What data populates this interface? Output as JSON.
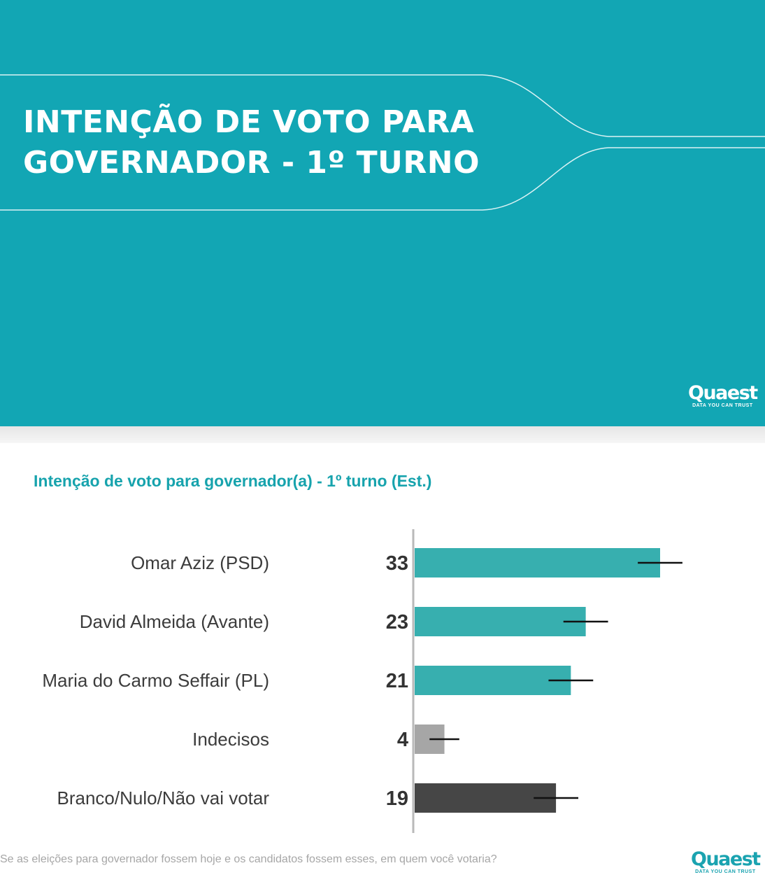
{
  "header": {
    "title_line1": "INTENÇÃO DE VOTO PARA",
    "title_line2": "GOVERNADOR - 1º TURNO"
  },
  "logo": {
    "name": "Quaest",
    "tagline": "DATA YOU CAN TRUST"
  },
  "footer": {
    "question": "Se as eleições para governador fossem hoje e os candidatos fossem esses, em quem você votaria?"
  },
  "chart_data": {
    "type": "bar",
    "orientation": "horizontal",
    "title": "Intenção de voto para governador(a) - 1º turno (Est.)",
    "categories": [
      "Omar Aziz (PSD)",
      "David Almeida (Avante)",
      "Maria do Carmo Seffair (PL)",
      "Indecisos",
      "Branco/Nulo/Não vai votar"
    ],
    "values": [
      33,
      23,
      21,
      4,
      19
    ],
    "labels": [
      "33",
      "23",
      "21",
      "4",
      "19"
    ],
    "error_margin": [
      3,
      3,
      3,
      2,
      3
    ],
    "colors": [
      "#37afaf",
      "#37afaf",
      "#37afaf",
      "#a6a6a6",
      "#464646"
    ],
    "xlim": [
      0,
      40
    ]
  }
}
